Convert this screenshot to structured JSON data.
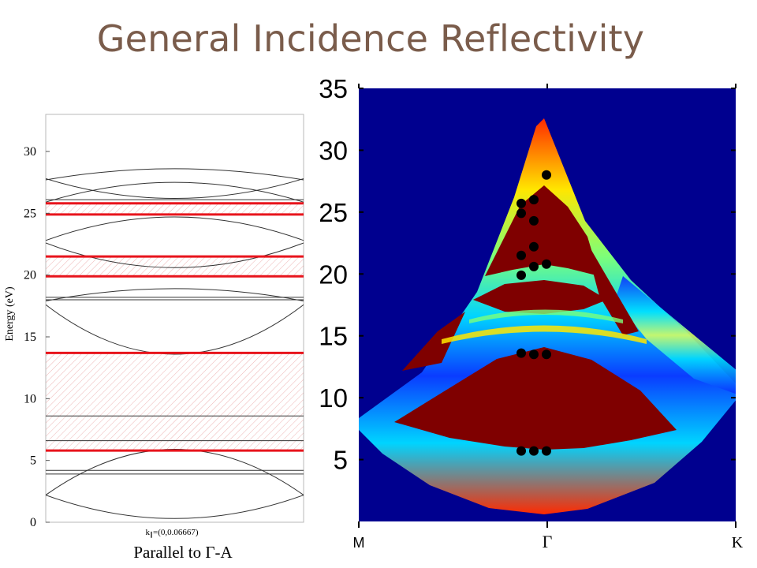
{
  "slide": {
    "title": "General Incidence Reflectivity"
  },
  "left_panel": {
    "ylabel": "Energy (eV)",
    "ytick_labels": [
      "0",
      "5",
      "10",
      "15",
      "20",
      "25",
      "30"
    ],
    "k_label": "k",
    "k_sub": "∥",
    "k_value": "=(0,0.06667)",
    "caption": "Parallel to Γ-A",
    "colors": {
      "red_line": "#e8141c",
      "hatch": "#e89a9a",
      "band": "#333333"
    }
  },
  "right_panel": {
    "ytick_labels": [
      "5",
      "10",
      "15",
      "20",
      "25",
      "30",
      "35"
    ],
    "xtick_labels": [
      "M",
      "Γ",
      "K"
    ],
    "colors": {
      "background": "#00008f",
      "fill": "#7f0000"
    }
  },
  "chart_data": [
    {
      "type": "line",
      "ylabel": "Energy (eV)",
      "ylim": [
        0,
        33
      ],
      "red_lines_energy": [
        5.8,
        13.7,
        19.9,
        21.5,
        24.9,
        25.8
      ],
      "hatched_gap_ranges": [
        [
          5.8,
          13.7
        ],
        [
          19.9,
          21.5
        ],
        [
          24.9,
          25.8
        ]
      ],
      "flat_bands_energy": [
        3.9,
        4.2,
        6.6,
        8.6,
        18.0,
        18.2,
        26.1
      ],
      "dispersive_bands": [
        {
          "edge": 2.2,
          "center": 0.3
        },
        {
          "edge": 2.2,
          "center": 5.9
        },
        {
          "edge": 17.6,
          "center": 13.6
        },
        {
          "edge": 17.9,
          "center": 18.9
        },
        {
          "edge": 22.6,
          "center": 20.6
        },
        {
          "edge": 22.8,
          "center": 24.7
        },
        {
          "edge": 25.9,
          "center": 27.5
        },
        {
          "edge": 27.8,
          "center": 26.2
        },
        {
          "edge": 27.7,
          "center": 28.6
        }
      ]
    },
    {
      "type": "heatmap",
      "ylim": [
        0,
        35
      ],
      "x_ticks": [
        "M",
        "Γ",
        "K"
      ],
      "marker_points": [
        {
          "col": -1,
          "e": 5.7
        },
        {
          "col": 0,
          "e": 5.7
        },
        {
          "col": 1,
          "e": 5.7
        },
        {
          "col": -1,
          "e": 13.6
        },
        {
          "col": 0,
          "e": 13.5
        },
        {
          "col": 1,
          "e": 13.5
        },
        {
          "col": -1,
          "e": 19.9
        },
        {
          "col": 0,
          "e": 20.6
        },
        {
          "col": 1,
          "e": 20.8
        },
        {
          "col": -1,
          "e": 21.5
        },
        {
          "col": 0,
          "e": 22.2
        },
        {
          "col": -1,
          "e": 24.9
        },
        {
          "col": 0,
          "e": 24.3
        },
        {
          "col": -1,
          "e": 25.7
        },
        {
          "col": 0,
          "e": 26.0
        },
        {
          "col": 1,
          "e": 28.0
        }
      ]
    }
  ]
}
